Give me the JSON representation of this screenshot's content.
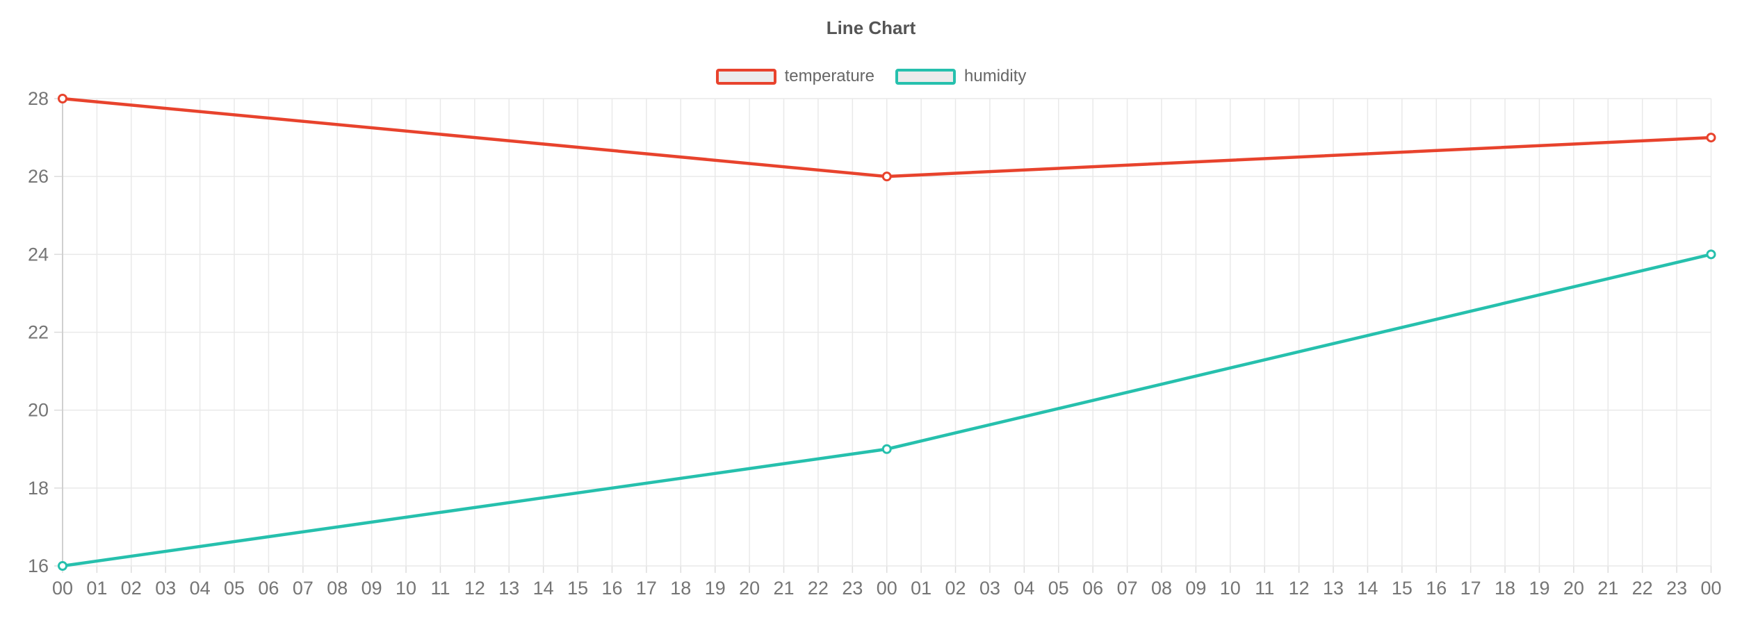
{
  "chart_data": {
    "type": "line",
    "title": "Line Chart",
    "x_labels": [
      "00",
      "01",
      "02",
      "03",
      "04",
      "05",
      "06",
      "07",
      "08",
      "09",
      "10",
      "11",
      "12",
      "13",
      "14",
      "15",
      "16",
      "17",
      "18",
      "19",
      "20",
      "21",
      "22",
      "23",
      "00",
      "01",
      "02",
      "03",
      "04",
      "05",
      "06",
      "07",
      "08",
      "09",
      "10",
      "11",
      "12",
      "13",
      "14",
      "15",
      "16",
      "17",
      "18",
      "19",
      "20",
      "21",
      "22",
      "23",
      "00"
    ],
    "y_ticks": [
      16,
      18,
      20,
      22,
      24,
      26,
      28
    ],
    "ylim": [
      16,
      28
    ],
    "grid": true,
    "legend_position": "top",
    "series": [
      {
        "name": "temperature",
        "color": "#e8432d",
        "x_indices": [
          0,
          24,
          48
        ],
        "values": [
          28,
          26,
          27
        ]
      },
      {
        "name": "humidity",
        "color": "#26c0ad",
        "x_indices": [
          0,
          24,
          48
        ],
        "values": [
          16,
          19,
          24
        ]
      }
    ]
  },
  "colors": {
    "temperature": "#e8432d",
    "humidity": "#26c0ad",
    "legend_box_fill": "#ebebeb",
    "grid": "#e9e9e9",
    "axis_line": "#d0d0d0",
    "tick_mark": "#dcdcdc",
    "tick_text": "#757575",
    "title_text": "#555555",
    "legend_text": "#666666",
    "point_fill": "#ffffff"
  }
}
